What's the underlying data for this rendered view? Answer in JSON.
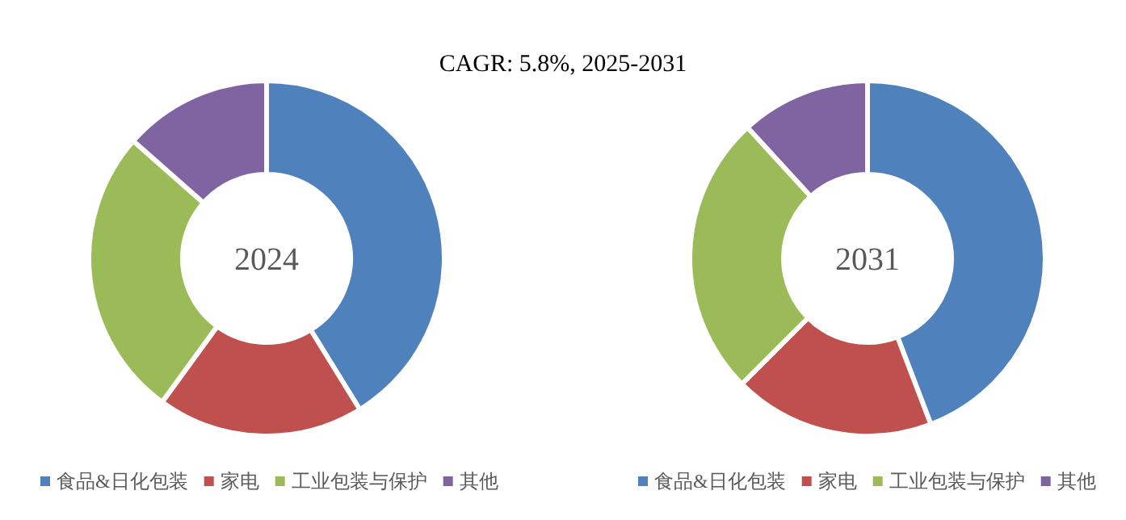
{
  "chart_data": [
    {
      "type": "donut",
      "title": "2024",
      "annotations": [
        "CAGR:  5.8%, 2025-2031"
      ],
      "categories": [
        "食品&日化包装",
        "家电",
        "工业包装与保护",
        "其他"
      ],
      "values": [
        41.2,
        18.8,
        26.5,
        13.5
      ],
      "colors": [
        "#4f81bd",
        "#c0504d",
        "#9bbb59",
        "#8064a2"
      ],
      "legend": "bottom"
    },
    {
      "type": "donut",
      "title": "2031",
      "categories": [
        "食品&日化包装",
        "家电",
        "工业包装与保护",
        "其他"
      ],
      "values": [
        44.2,
        18.3,
        25.7,
        11.8
      ],
      "colors": [
        "#4f81bd",
        "#c0504d",
        "#9bbb59",
        "#8064a2"
      ],
      "legend": "bottom"
    }
  ]
}
